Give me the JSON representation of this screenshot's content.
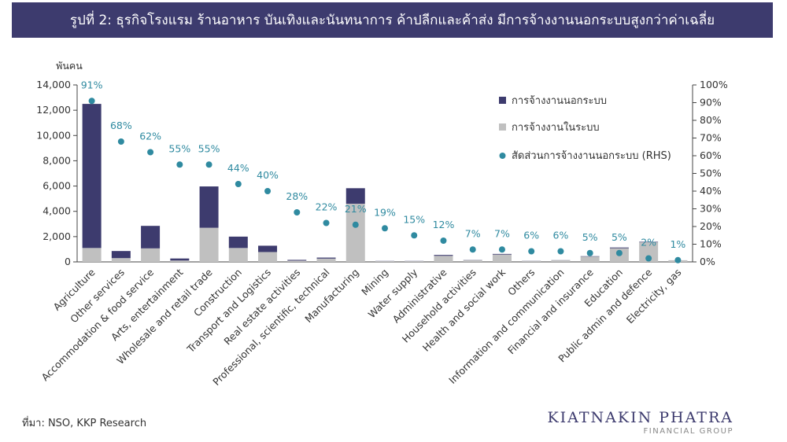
{
  "title": "รูปที่ 2: ธุรกิจโรงแรม ร้านอาหาร บันเทิงและนันทนาการ ค้าปลีกและค้าส่ง มีการจ้างงานนอกระบบสูงกว่าค่าเฉลี่ย",
  "source": "ที่มา: NSO, KKP Research",
  "logo": {
    "main": "KIATNAKIN PHATRA",
    "sub": "FINANCIAL GROUP"
  },
  "colors": {
    "informal": "#3d3b6e",
    "formal": "#c0c0c0",
    "ratio": "#2f8aa0",
    "title_bg": "#3d3b6e"
  },
  "chart_data": {
    "type": "bar",
    "stacked": true,
    "y_unit_label": "พันคน",
    "ylim": [
      0,
      14000
    ],
    "y_ticks": [
      "0",
      "2,000",
      "4,000",
      "6,000",
      "8,000",
      "10,000",
      "12,000",
      "14,000"
    ],
    "y2lim": [
      0,
      100
    ],
    "y2_ticks": [
      "0%",
      "10%",
      "20%",
      "30%",
      "40%",
      "50%",
      "60%",
      "70%",
      "80%",
      "90%",
      "100%"
    ],
    "grid": false,
    "legend_position": "top-right",
    "categories": [
      "Agriculture",
      "Other services",
      "Accommodation & food service",
      "Arts, entertainment",
      "Wholesale and retail trade",
      "Construction",
      "Transport and Logistics",
      "Real estate activities",
      "Professional, scientific, technical",
      "Manufacturing",
      "Mining",
      "Water supply",
      "Administrative",
      "Household activities",
      "Health and social work",
      "Others",
      "Information and communication",
      "Financial and insurance",
      "Education",
      "Public admin and defence",
      "Electricity, gas"
    ],
    "series": [
      {
        "name": "การจ้างงานนอกระบบ",
        "type": "bar",
        "values": [
          11400,
          560,
          1780,
          160,
          3270,
          900,
          500,
          60,
          80,
          1230,
          15,
          15,
          70,
          15,
          50,
          10,
          10,
          30,
          60,
          40,
          1
        ]
      },
      {
        "name": "การจ้างงานในระบบ",
        "type": "bar",
        "values": [
          1100,
          300,
          1070,
          110,
          2700,
          1100,
          780,
          100,
          260,
          4600,
          60,
          60,
          480,
          140,
          580,
          80,
          130,
          420,
          1080,
          1550,
          130
        ]
      },
      {
        "name": "สัดส่วนการจ้างงานนอกระบบ (RHS)",
        "type": "scatter",
        "axis": "right",
        "values": [
          91,
          68,
          62,
          55,
          55,
          44,
          40,
          28,
          22,
          21,
          19,
          15,
          12,
          7,
          7,
          6,
          6,
          5,
          5,
          2,
          1
        ],
        "labels": [
          "91%",
          "68%",
          "62%",
          "55%",
          "55%",
          "44%",
          "40%",
          "28%",
          "22%",
          "21%",
          "19%",
          "15%",
          "12%",
          "7%",
          "7%",
          "6%",
          "6%",
          "5%",
          "5%",
          "2%",
          "1%"
        ]
      }
    ]
  }
}
